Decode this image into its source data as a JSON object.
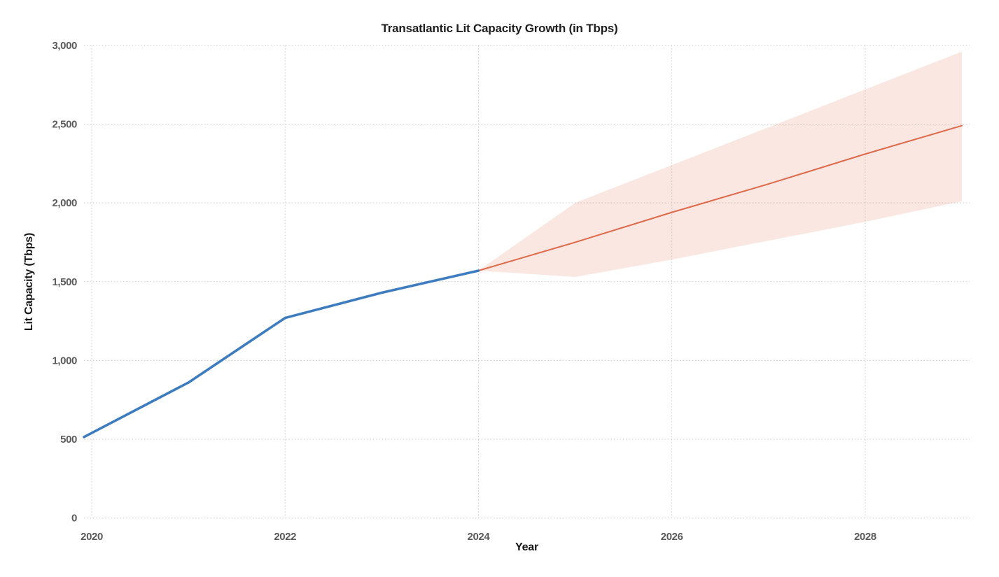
{
  "chart_data": {
    "type": "line",
    "title": "Transatlantic Lit Capacity Growth (in Tbps)",
    "xlabel": "Year",
    "ylabel": "Lit Capacity (Tbps)",
    "xlim": [
      2019.92,
      2029.08
    ],
    "ylim": [
      0,
      3000
    ],
    "grid": true,
    "grid_style": "dotted",
    "legend": "none",
    "x_ticks": [
      {
        "value": 2020,
        "label": "2020"
      },
      {
        "value": 2022,
        "label": "2022"
      },
      {
        "value": 2024,
        "label": "2024"
      },
      {
        "value": 2026,
        "label": "2026"
      },
      {
        "value": 2028,
        "label": "2028"
      }
    ],
    "y_ticks": [
      {
        "value": 0,
        "label": "0"
      },
      {
        "value": 500,
        "label": "500"
      },
      {
        "value": 1000,
        "label": "1,000"
      },
      {
        "value": 1500,
        "label": "1,500"
      },
      {
        "value": 2000,
        "label": "2,000"
      },
      {
        "value": 2500,
        "label": "2,500"
      },
      {
        "value": 3000,
        "label": "3,000"
      }
    ],
    "series": [
      {
        "name": "forecast-confidence-band",
        "type": "area",
        "color": "#e2714e",
        "opacity": 0.17,
        "x": [
          2024,
          2025,
          2026,
          2027,
          2028,
          2029
        ],
        "upper": [
          1570,
          2000,
          2240,
          2480,
          2720,
          2960
        ],
        "lower": [
          1570,
          1530,
          1640,
          1760,
          1880,
          2010
        ]
      },
      {
        "name": "forecast",
        "type": "line",
        "color": "#e0694a",
        "width": 2,
        "x": [
          2024,
          2025,
          2026,
          2027,
          2028,
          2029
        ],
        "y": [
          1570,
          1750,
          1940,
          2120,
          2310,
          2490
        ]
      },
      {
        "name": "historical",
        "type": "line",
        "color": "#3d7cbf",
        "width": 3.6,
        "x": [
          2020,
          2021,
          2022,
          2023,
          2024
        ],
        "y": [
          540,
          860,
          1270,
          1430,
          1570
        ]
      }
    ]
  }
}
